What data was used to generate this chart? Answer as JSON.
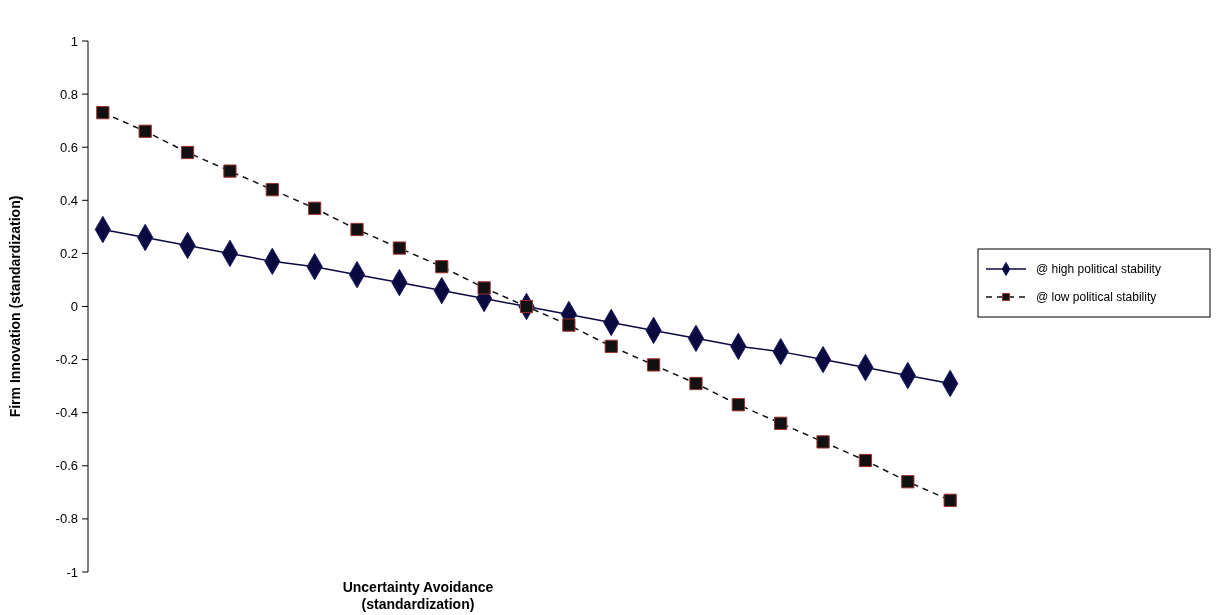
{
  "chart_data": {
    "type": "line",
    "xlabel": "Uncertainty Avoidance (standardization)",
    "ylabel": "Firm Innovation (standardization)",
    "categories": [
      null,
      null,
      null,
      null,
      null,
      null,
      null,
      null,
      null,
      null,
      null,
      null,
      null,
      null,
      null,
      null,
      null,
      null,
      null,
      null,
      null
    ],
    "ylim": [
      -1,
      1
    ],
    "yticks": [
      -1,
      -0.8,
      -0.6,
      -0.4,
      -0.2,
      0,
      0.2,
      0.4,
      0.6,
      0.8,
      1
    ],
    "legend": "right",
    "tick_labels": "y",
    "series": [
      {
        "name": "@ high political stability",
        "color": "#0a0a40",
        "marker": "diamond",
        "line_style": "solid",
        "values": [
          0.29,
          0.26,
          0.23,
          0.2,
          0.17,
          0.15,
          0.12,
          0.09,
          0.06,
          0.03,
          0,
          -0.03,
          -0.06,
          -0.09,
          -0.12,
          -0.15,
          -0.17,
          -0.2,
          -0.23,
          -0.26,
          -0.29
        ]
      },
      {
        "name": "@ low political stability",
        "color": "#111111",
        "marker": "square",
        "line_style": "dashed",
        "values": [
          0.73,
          0.66,
          0.58,
          0.51,
          0.44,
          0.37,
          0.29,
          0.22,
          0.15,
          0.07,
          0,
          -0.07,
          -0.15,
          -0.22,
          -0.29,
          -0.37,
          -0.44,
          -0.51,
          -0.58,
          -0.66,
          -0.73
        ]
      }
    ]
  }
}
